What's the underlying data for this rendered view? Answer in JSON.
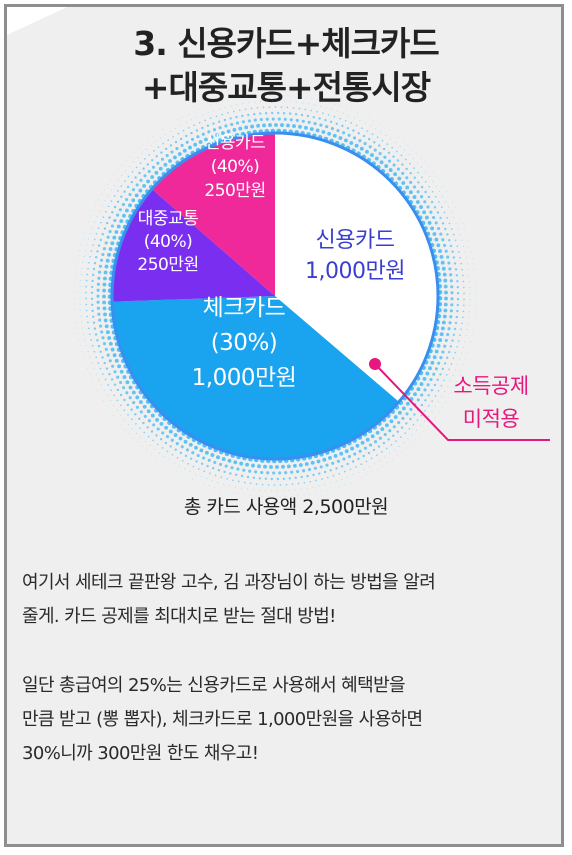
{
  "title": {
    "line1": "3. 신용카드+체크카드",
    "line2": "+대중교통+전통시장"
  },
  "colors": {
    "credit": "#ffffff",
    "check": "#1aa3ee",
    "transit": "#7a2ff0",
    "credit_small": "#f0299b",
    "outline": "#3a8ef0",
    "note": "#e8177e",
    "credit_text": "#3a3fd0"
  },
  "chart_data": {
    "type": "pie",
    "slices": [
      {
        "key": "credit_main",
        "lines": [
          "신용카드",
          "1,000만원"
        ],
        "value": 1000,
        "color": "#ffffff",
        "text_color": "#3a3fd0"
      },
      {
        "key": "check",
        "lines": [
          "체크카드",
          "(30%)",
          "1,000만원"
        ],
        "value": 1000,
        "color": "#1aa3ee",
        "text_color": "#ffffff"
      },
      {
        "key": "transit",
        "lines": [
          "대중교통",
          "(40%)",
          "250만원"
        ],
        "value": 250,
        "color": "#7a2ff0",
        "text_color": "#ffffff"
      },
      {
        "key": "credit_small",
        "lines": [
          "신용카드",
          "(40%)",
          "250만원"
        ],
        "value": 250,
        "color": "#f0299b",
        "text_color": "#ffffff"
      }
    ],
    "annotation": {
      "lines": [
        "소득공제",
        "미적용"
      ],
      "target": "credit_main"
    }
  },
  "total_label": "총 카드 사용액 2,500만원",
  "paragraph1": [
    "여기서 세테크 끝판왕 고수, 김 과장님이 하는 방법을 알려",
    "줄게. 카드 공제를 최대치로 받는 절대 방법!"
  ],
  "paragraph2": [
    "일단 총급여의 25%는 신용카드로 사용해서 혜택받을",
    "만큼 받고 (뽕 뽑자), 체크카드로 1,000만원을 사용하면",
    "30%니까 300만원 한도 채우고!"
  ]
}
